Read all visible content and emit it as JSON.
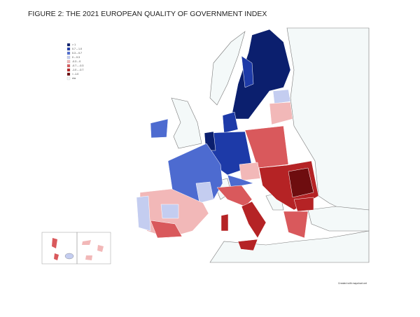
{
  "title": "FIGURE 2: THE 2021 EUROPEAN QUALITY OF GOVERNMENT INDEX",
  "legend": [
    {
      "label": "> 1",
      "color": "#0b1f6e"
    },
    {
      "label": "0.7 – 1.0",
      "color": "#1d3aa8"
    },
    {
      "label": "0.3 – 0.7",
      "color": "#4d6bd0"
    },
    {
      "label": "0 – 0.3",
      "color": "#c4cdf0"
    },
    {
      "label": "-0.3 – 0",
      "color": "#f2b8b8"
    },
    {
      "label": "-0.7 – -0.3",
      "color": "#d9595c"
    },
    {
      "label": "-1.0 – -0.7",
      "color": "#b52325"
    },
    {
      "label": "< -1.0",
      "color": "#6e0d0f"
    },
    {
      "label": "n/a",
      "color": "#f4f9f9"
    }
  ],
  "credit": "Created with mapchart.net"
}
